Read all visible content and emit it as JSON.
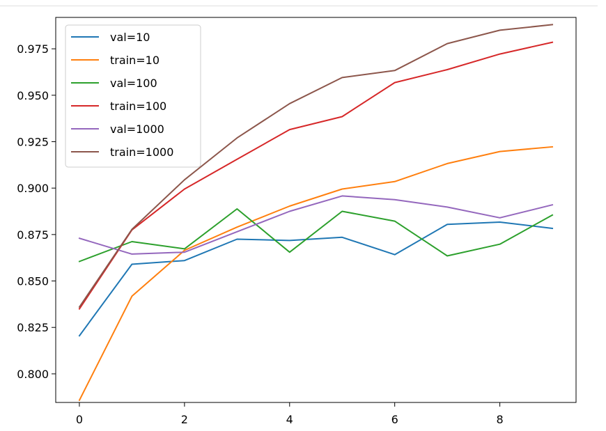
{
  "chart_data": {
    "type": "line",
    "title": "",
    "xlabel": "",
    "ylabel": "",
    "x": [
      0,
      1,
      2,
      3,
      4,
      5,
      6,
      7,
      8,
      9
    ],
    "xlim": [
      -0.45,
      9.45
    ],
    "ylim": [
      0.7846,
      0.9919
    ],
    "xticks": [
      0,
      2,
      4,
      6,
      8
    ],
    "xtick_labels": [
      "0",
      "2",
      "4",
      "6",
      "8"
    ],
    "yticks": [
      0.8,
      0.825,
      0.85,
      0.875,
      0.9,
      0.925,
      0.95,
      0.975
    ],
    "ytick_labels": [
      "0.800",
      "0.825",
      "0.850",
      "0.875",
      "0.900",
      "0.925",
      "0.950",
      "0.975"
    ],
    "legend_position": "top-left",
    "grid": false,
    "series": [
      {
        "name": "val=10",
        "color": "#1f77b4",
        "values": [
          0.8205,
          0.859,
          0.861,
          0.8725,
          0.8718,
          0.8735,
          0.8642,
          0.8805,
          0.8817,
          0.8783
        ]
      },
      {
        "name": "train=10",
        "color": "#ff7f0e",
        "values": [
          0.7858,
          0.8418,
          0.8665,
          0.879,
          0.8903,
          0.8995,
          0.9035,
          0.9132,
          0.9197,
          0.9222
        ]
      },
      {
        "name": "val=100",
        "color": "#2ca02c",
        "values": [
          0.8605,
          0.8712,
          0.8673,
          0.8888,
          0.8655,
          0.8875,
          0.8822,
          0.8635,
          0.8698,
          0.8855
        ]
      },
      {
        "name": "train=100",
        "color": "#d62728",
        "values": [
          0.835,
          0.8775,
          0.8995,
          0.9155,
          0.9315,
          0.9385,
          0.9568,
          0.9638,
          0.9722,
          0.9785
        ]
      },
      {
        "name": "val=1000",
        "color": "#9467bd",
        "values": [
          0.873,
          0.8645,
          0.8655,
          0.8765,
          0.8875,
          0.8958,
          0.8938,
          0.8898,
          0.884,
          0.891
        ]
      },
      {
        "name": "train=1000",
        "color": "#8c564b",
        "values": [
          0.836,
          0.8778,
          0.9045,
          0.927,
          0.9455,
          0.9595,
          0.9633,
          0.9778,
          0.985,
          0.988
        ]
      }
    ]
  }
}
